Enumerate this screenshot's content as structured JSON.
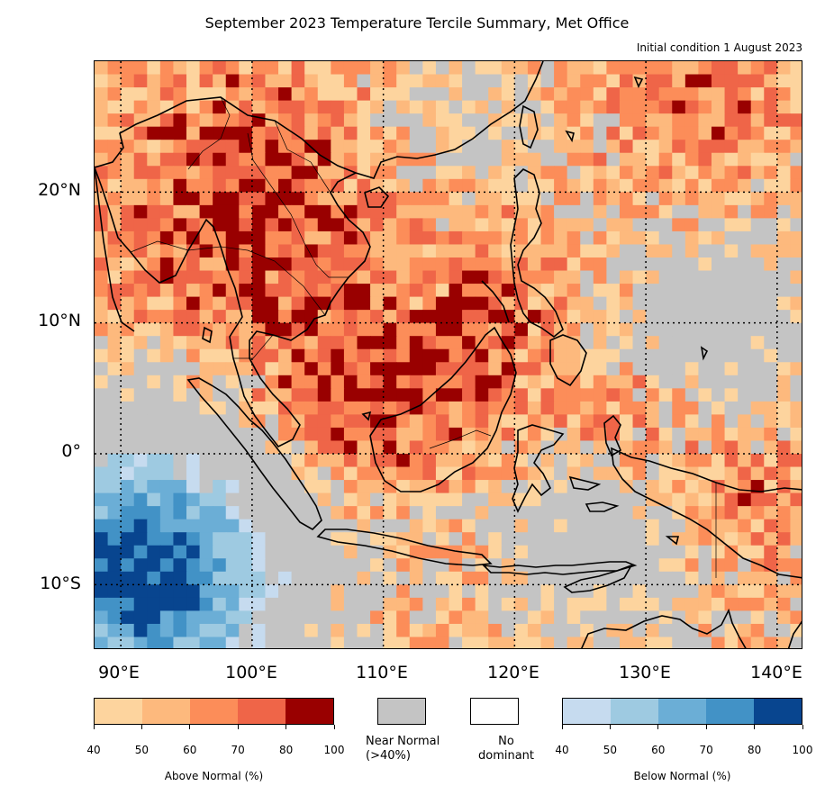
{
  "title": "September 2023 Temperature Tercile Summary, Met Office",
  "subtitle": "Initial condition 1 August 2023",
  "map": {
    "lon_labels": [
      "90°E",
      "100°E",
      "110°E",
      "120°E",
      "130°E",
      "140°E"
    ],
    "lat_labels": [
      "20°N",
      "10°N",
      "0°",
      "10°S"
    ],
    "lon_range": [
      88,
      142
    ],
    "lat_range": [
      -15,
      30
    ],
    "colors": {
      "above": [
        "#fdd49e",
        "#fdb97d",
        "#fc8d59",
        "#ef6548",
        "#990000"
      ],
      "near_normal": "#c4c4c4",
      "no_dominant": "#ffffff",
      "below": [
        "#c6dbef",
        "#9ecae1",
        "#6baed6",
        "#4292c6",
        "#08458f"
      ]
    }
  },
  "legend": {
    "above": {
      "label": "Above Normal (%)",
      "ticks": [
        "40",
        "50",
        "60",
        "70",
        "80",
        "100"
      ]
    },
    "near_normal": {
      "label_line1": "Near Normal",
      "label_line2": "(>40%)"
    },
    "no_dominant": {
      "label_line1": "No",
      "label_line2": "dominant"
    },
    "below": {
      "label": "Below Normal (%)",
      "ticks": [
        "40",
        "50",
        "60",
        "70",
        "80",
        "100"
      ]
    }
  }
}
